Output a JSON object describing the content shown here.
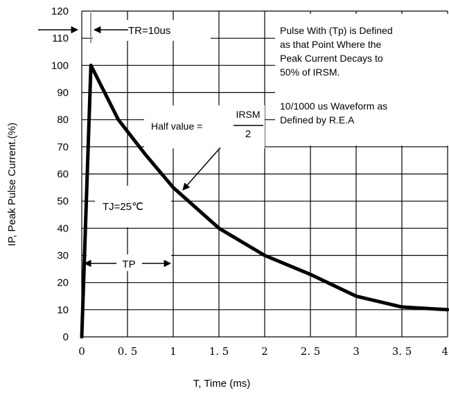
{
  "chart_data": {
    "type": "line",
    "title": "",
    "xlabel": "T, Time (ms)",
    "ylabel": "IP, Peak Pulse Current.(%)",
    "xlim": [
      0,
      4
    ],
    "ylim": [
      0,
      120
    ],
    "x_ticks": [
      "0",
      "0. 5",
      "1",
      "1. 5",
      "2",
      "2. 5",
      "3",
      "3. 5",
      "4"
    ],
    "y_ticks": [
      "0",
      "10",
      "20",
      "30",
      "40",
      "50",
      "60",
      "70",
      "80",
      "90",
      "100",
      "110",
      "120"
    ],
    "grid": true,
    "series": [
      {
        "x": [
          0,
          0.1,
          0.4,
          0.7,
          1.0,
          1.5,
          2.0,
          2.5,
          3.0,
          3.5,
          4.0
        ],
        "y": [
          0,
          100,
          80,
          67,
          55,
          40,
          30,
          23,
          15,
          11,
          10
        ]
      }
    ],
    "annotations": {
      "tr_label": "TR=10us",
      "tj_label": "TJ=25℃",
      "tp_label": "TP",
      "half_value_label": "Half value  =",
      "half_value_num": "IRSM",
      "half_value_den": "2",
      "note_lines": [
        "Pulse With (Tp) is Defined",
        "as that Point Where the",
        "Peak Current Decays to",
        "50% of  IRSM.",
        "",
        "10/1000 us Waveform as",
        "Defined by R.E.A"
      ]
    },
    "colors": {
      "line": "#000000",
      "grid": "#000000",
      "marker": "#999999"
    }
  }
}
